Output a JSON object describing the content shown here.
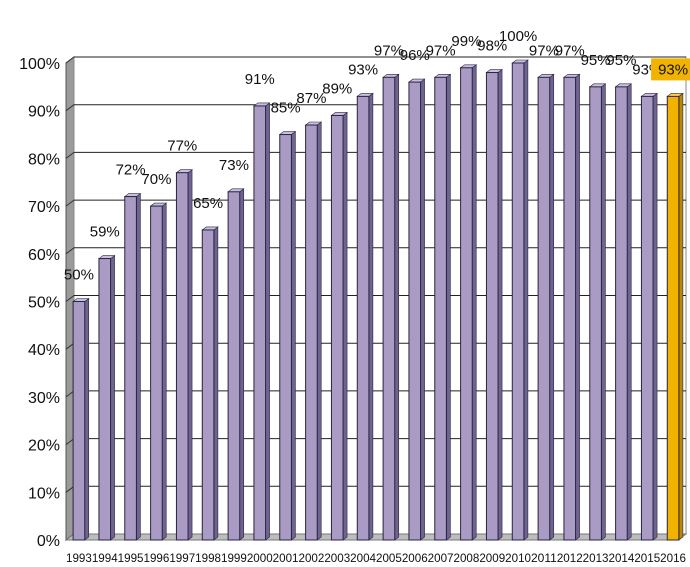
{
  "chart_data": {
    "type": "bar",
    "title": "",
    "xlabel": "",
    "ylabel": "",
    "ylim": [
      0,
      100
    ],
    "yticks": [
      "0%",
      "10%",
      "20%",
      "30%",
      "40%",
      "50%",
      "60%",
      "70%",
      "80%",
      "90%",
      "100%"
    ],
    "grid": true,
    "categories": [
      "1993",
      "1994",
      "1995",
      "1996",
      "1997",
      "1998",
      "1999",
      "2000",
      "2001",
      "2002",
      "2003",
      "2004",
      "2005",
      "2006",
      "2007",
      "2008",
      "2009",
      "2010",
      "2011",
      "2012",
      "2013",
      "2014",
      "2015",
      "2016"
    ],
    "values": [
      50,
      59,
      72,
      70,
      77,
      65,
      73,
      91,
      85,
      87,
      89,
      93,
      97,
      96,
      97,
      99,
      98,
      100,
      97,
      97,
      95,
      95,
      93,
      93
    ],
    "labels": [
      "50%",
      "59%",
      "72%",
      "70%",
      "77%",
      "65%",
      "73%",
      "91%",
      "85%",
      "87%",
      "89%",
      "93%",
      "97%",
      "96%",
      "97%",
      "99%",
      "98%",
      "100%",
      "97%",
      "97%",
      "95%",
      "95%",
      "93%",
      "93%"
    ],
    "colors": {
      "bar": "#a99bc4",
      "bar_edge": "#2a2440",
      "highlight": "#f2b300",
      "highlight_label_bg": "#f2b300"
    },
    "highlight_index": 23
  }
}
